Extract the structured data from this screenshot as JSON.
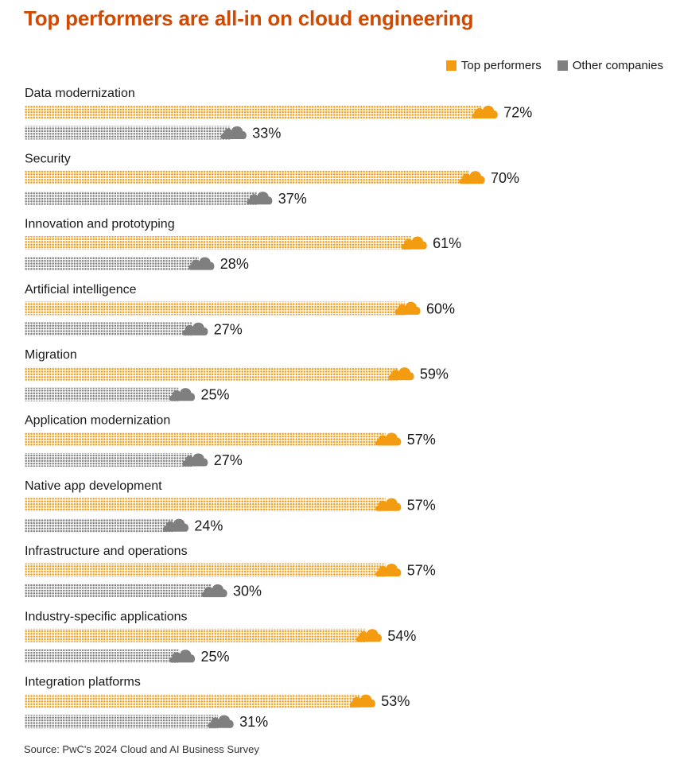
{
  "title": "Top performers are all-in on cloud engineering",
  "source": "Source: PwC's 2024 Cloud and AI Business Survey",
  "chart_data": {
    "type": "bar",
    "orientation": "horizontal",
    "title": "Top performers are all-in on cloud engineering",
    "categories": [
      "Data modernization",
      "Security",
      "Innovation and prototyping",
      "Artificial intelligence",
      "Migration",
      "Application modernization",
      "Native app development",
      "Infrastructure and operations",
      "Industry-specific applications",
      "Integration platforms"
    ],
    "series": [
      {
        "name": "Top performers",
        "color": "#f39c12",
        "values": [
          72,
          70,
          61,
          60,
          59,
          57,
          57,
          57,
          54,
          53
        ]
      },
      {
        "name": "Other companies",
        "color": "#7f7f7f",
        "values": [
          33,
          37,
          28,
          27,
          25,
          27,
          24,
          30,
          25,
          31
        ]
      }
    ],
    "value_suffix": "%",
    "legend_position": "top-right",
    "grid": false
  }
}
